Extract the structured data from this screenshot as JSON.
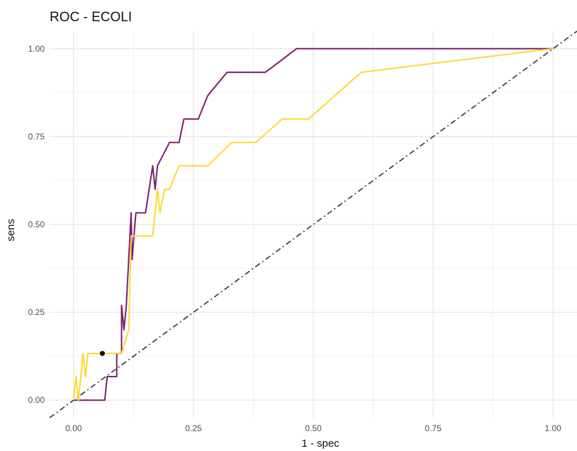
{
  "chart_data": {
    "type": "line",
    "title": "ROC - ECOLI",
    "xlabel": "1 - spec",
    "ylabel": "sens",
    "xlim": [
      -0.05,
      1.05
    ],
    "ylim": [
      -0.05,
      1.05
    ],
    "grid": true,
    "legend": "none",
    "x_ticks": [
      "0.00",
      "0.25",
      "0.50",
      "0.75",
      "1.00"
    ],
    "y_ticks": [
      "0.00",
      "0.25",
      "0.50",
      "0.75",
      "1.00"
    ],
    "colors": {
      "purple": "#7B1F6A",
      "yellow": "#FDD835",
      "diagonal": "#333333",
      "point": "#111111"
    },
    "series": [
      {
        "color": "#7B1F6A",
        "points": [
          [
            0.0,
            0.0
          ],
          [
            0.065,
            0.0
          ],
          [
            0.07,
            0.067
          ],
          [
            0.09,
            0.067
          ],
          [
            0.09,
            0.133
          ],
          [
            0.1,
            0.133
          ],
          [
            0.1,
            0.27
          ],
          [
            0.105,
            0.2
          ],
          [
            0.11,
            0.27
          ],
          [
            0.12,
            0.533
          ],
          [
            0.122,
            0.4
          ],
          [
            0.13,
            0.533
          ],
          [
            0.15,
            0.533
          ],
          [
            0.165,
            0.667
          ],
          [
            0.17,
            0.6
          ],
          [
            0.175,
            0.667
          ],
          [
            0.2,
            0.733
          ],
          [
            0.22,
            0.733
          ],
          [
            0.23,
            0.8
          ],
          [
            0.26,
            0.8
          ],
          [
            0.28,
            0.867
          ],
          [
            0.32,
            0.933
          ],
          [
            0.4,
            0.933
          ],
          [
            0.465,
            1.0
          ],
          [
            1.0,
            1.0
          ]
        ]
      },
      {
        "color": "#FDD835",
        "points": [
          [
            0.0,
            0.0
          ],
          [
            0.005,
            0.067
          ],
          [
            0.01,
            0.0
          ],
          [
            0.02,
            0.133
          ],
          [
            0.025,
            0.067
          ],
          [
            0.03,
            0.133
          ],
          [
            0.1,
            0.133
          ],
          [
            0.115,
            0.2
          ],
          [
            0.12,
            0.467
          ],
          [
            0.165,
            0.467
          ],
          [
            0.175,
            0.6
          ],
          [
            0.18,
            0.533
          ],
          [
            0.19,
            0.6
          ],
          [
            0.2,
            0.6
          ],
          [
            0.22,
            0.667
          ],
          [
            0.28,
            0.667
          ],
          [
            0.33,
            0.733
          ],
          [
            0.38,
            0.733
          ],
          [
            0.435,
            0.8
          ],
          [
            0.49,
            0.8
          ],
          [
            0.6,
            0.933
          ],
          [
            1.0,
            1.0
          ]
        ]
      }
    ],
    "diagonal": [
      [
        -0.05,
        -0.05
      ],
      [
        1.05,
        1.05
      ]
    ],
    "point": [
      0.06,
      0.133
    ]
  }
}
